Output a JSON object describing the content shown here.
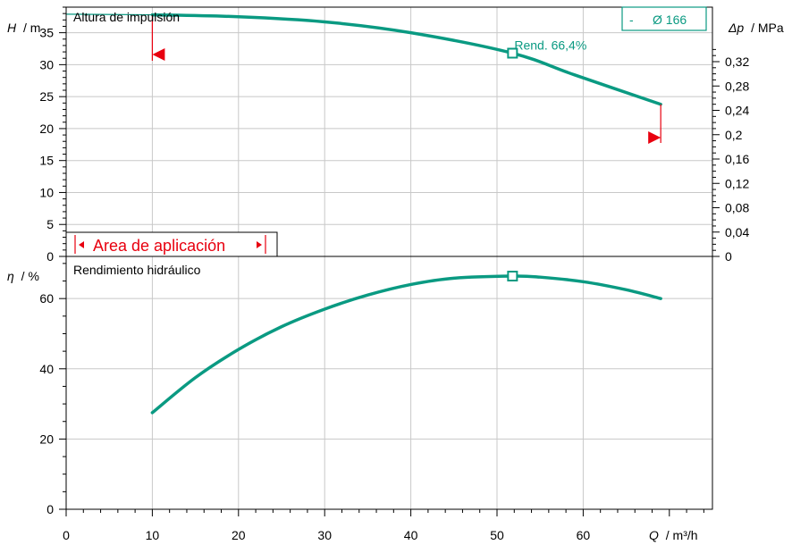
{
  "chart_data": [
    {
      "type": "line",
      "title": "Altura de impulsión",
      "ylabel_var": "H",
      "ylabel_unit": "/ m",
      "y2label_var": "Δp",
      "y2label_unit": "/ MPa",
      "xlim": [
        0,
        75
      ],
      "ylim": [
        0,
        39
      ],
      "yticks": [
        0,
        5,
        10,
        15,
        20,
        25,
        30,
        35
      ],
      "y2ticks": [
        "0",
        "0,04",
        "0,08",
        "0,12",
        "0,16",
        "0,2",
        "0,24",
        "0,28",
        "0,32"
      ],
      "series": [
        {
          "name": "Ø 166",
          "x": [
            10,
            20,
            30,
            40,
            51.8,
            59,
            69
          ],
          "y": [
            37.8,
            37.5,
            36.7,
            35.0,
            31.8,
            28.4,
            23.8
          ]
        }
      ],
      "flat_extension": {
        "x": [
          0,
          10
        ],
        "y": [
          37.9,
          37.8
        ]
      },
      "operating_point": {
        "x": 51.8,
        "y": 31.8,
        "label": "Rend.  66,4%"
      },
      "legend": {
        "dash": "-",
        "label": "Ø 166"
      },
      "application_range": {
        "label": "Area de aplicación",
        "x_min": 10,
        "x_max": 69
      }
    },
    {
      "type": "line",
      "title": "Rendimiento hidráulico",
      "ylabel_var": "η",
      "ylabel_unit": "/ %",
      "xlabel_var": "Q",
      "xlabel_unit": "/ m³/h",
      "xlim": [
        0,
        75
      ],
      "ylim": [
        0,
        72
      ],
      "xticks": [
        0,
        10,
        20,
        30,
        40,
        50,
        60
      ],
      "yticks": [
        0,
        20,
        40,
        60
      ],
      "series": [
        {
          "name": "Ø 166",
          "x": [
            10,
            15,
            20,
            25,
            30,
            35,
            40,
            45,
            51.8,
            55,
            60,
            65,
            69
          ],
          "y": [
            27.5,
            37.5,
            45.5,
            52.0,
            57.0,
            61.0,
            64.0,
            65.8,
            66.4,
            66.1,
            64.8,
            62.5,
            60.0
          ]
        }
      ],
      "operating_point": {
        "x": 51.8,
        "y": 66.4
      }
    }
  ]
}
